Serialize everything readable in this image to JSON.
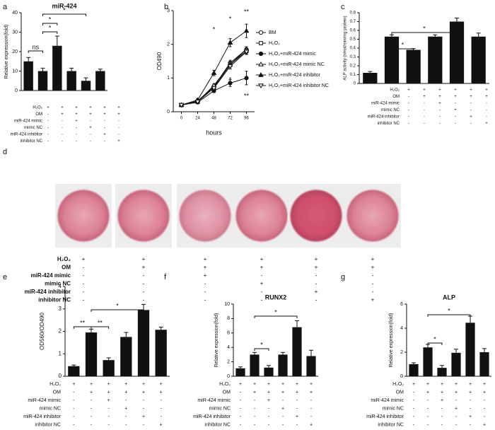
{
  "chart_data": [
    {
      "panel": "a",
      "type": "bar",
      "title": "miR-424",
      "ylabel": "Relative expression(fold)",
      "color": "#111111",
      "values": [
        15,
        10,
        23,
        10,
        5,
        10
      ],
      "errors": [
        2,
        1.5,
        5,
        1.5,
        1.5,
        1
      ],
      "ylim": [
        0,
        40
      ],
      "yticks": [
        0,
        10,
        20,
        30,
        40
      ],
      "annotations": [
        "ns",
        "*",
        "*",
        "*"
      ],
      "treatments": [
        {
          "label": "H₂O₂",
          "signs": [
            "+",
            "+",
            "+",
            "+",
            "+",
            "+"
          ]
        },
        {
          "label": "OM",
          "signs": [
            "-",
            "+",
            "+",
            "+",
            "+",
            "+"
          ]
        },
        {
          "label": "miR-424 mimic",
          "signs": [
            "-",
            "-",
            "+",
            "-",
            "-",
            "-"
          ]
        },
        {
          "label": "mimic NC",
          "signs": [
            "-",
            "-",
            "-",
            "+",
            "-",
            "-"
          ]
        },
        {
          "label": "miR-424 inhibitor",
          "signs": [
            "-",
            "-",
            "-",
            "-",
            "+",
            "-"
          ]
        },
        {
          "label": "inhibitor NC",
          "signs": [
            "-",
            "-",
            "-",
            "-",
            "-",
            "+"
          ]
        }
      ]
    },
    {
      "panel": "b",
      "type": "line",
      "xlabel": "hours",
      "ylabel": "OD490",
      "x": [
        0,
        24,
        48,
        72,
        96
      ],
      "xlim": [
        -12,
        108
      ],
      "xticks": [
        0,
        24,
        48,
        72,
        96
      ],
      "ylim": [
        0,
        3
      ],
      "yticks": [
        0,
        1,
        2,
        3
      ],
      "series": [
        {
          "name": "BM",
          "color": "#111111",
          "values": [
            0.2,
            0.32,
            0.75,
            1.45,
            1.85
          ],
          "errors": [
            0.02,
            0.03,
            0.05,
            0.08,
            0.08
          ]
        },
        {
          "name": "H₂O₂",
          "color": "#111111",
          "values": [
            0.2,
            0.3,
            0.72,
            1.4,
            1.8
          ],
          "errors": [
            0.02,
            0.03,
            0.05,
            0.08,
            0.08
          ]
        },
        {
          "name": "H₂O₂+miR-424 mimic",
          "color": "#111111",
          "values": [
            0.2,
            0.28,
            0.62,
            0.85,
            1.0
          ],
          "errors": [
            0.02,
            0.03,
            0.05,
            0.1,
            0.2
          ]
        },
        {
          "name": "H₂O₂+miR-424 mimic NC",
          "color": "#111111",
          "values": [
            0.2,
            0.3,
            0.78,
            1.4,
            1.85
          ],
          "errors": [
            0.02,
            0.03,
            0.05,
            0.08,
            0.08
          ]
        },
        {
          "name": "H₂O₂+miR-424 inhibitor",
          "color": "#111111",
          "values": [
            0.2,
            0.35,
            1.15,
            2.05,
            2.4
          ],
          "errors": [
            0.02,
            0.04,
            0.08,
            0.12,
            0.2
          ]
        },
        {
          "name": "H₂O₂+miR-424 inhibitor NC",
          "color": "#111111",
          "values": [
            0.2,
            0.3,
            0.7,
            1.35,
            1.78
          ],
          "errors": [
            0.02,
            0.03,
            0.05,
            0.08,
            0.08
          ]
        }
      ],
      "annotations": [
        "*",
        "*",
        "*",
        "**",
        "**"
      ]
    },
    {
      "panel": "c",
      "type": "bar",
      "ylabel": "ALP activity (nmol/min/mg protein)",
      "color": "#111111",
      "values": [
        0.12,
        0.53,
        0.38,
        0.53,
        0.7,
        0.53
      ],
      "errors": [
        0.015,
        0.02,
        0.015,
        0.02,
        0.04,
        0.04
      ],
      "ylim": [
        0,
        0.8
      ],
      "yticks": [
        0,
        0.1,
        0.2,
        0.3,
        0.4,
        0.5,
        0.6,
        0.7,
        0.8
      ],
      "annotations": [
        "*",
        "*"
      ],
      "treatments": [
        {
          "label": "H₂O₂",
          "signs": [
            "+",
            "+",
            "+",
            "+",
            "+",
            "+"
          ]
        },
        {
          "label": "OM",
          "signs": [
            "-",
            "+",
            "+",
            "+",
            "+",
            "+"
          ]
        },
        {
          "label": "miR-424 mimic",
          "signs": [
            "-",
            "-",
            "+",
            "-",
            "-",
            "-"
          ]
        },
        {
          "label": "mimic NC",
          "signs": [
            "-",
            "-",
            "-",
            "+",
            "-",
            "-"
          ]
        },
        {
          "label": "miR-424 inhibitor",
          "signs": [
            "-",
            "-",
            "-",
            "-",
            "+",
            "-"
          ]
        },
        {
          "label": "inhibitor NC",
          "signs": [
            "-",
            "-",
            "-",
            "-",
            "-",
            "+"
          ]
        }
      ]
    },
    {
      "panel": "e",
      "type": "bar",
      "ylabel": "OD560/OD490",
      "color": "#111111",
      "values": [
        0.45,
        1.95,
        0.72,
        1.75,
        2.95,
        2.07
      ],
      "errors": [
        0.05,
        0.15,
        0.1,
        0.2,
        0.25,
        0.12
      ],
      "ylim": [
        0,
        4
      ],
      "yticks": [
        0,
        1,
        2,
        3,
        4
      ],
      "annotations": [
        "**",
        "**",
        "*"
      ],
      "treatments": [
        {
          "label": "H₂O₂",
          "signs": [
            "+",
            "+",
            "+",
            "+",
            "+",
            "+"
          ]
        },
        {
          "label": "OM",
          "signs": [
            "-",
            "+",
            "+",
            "+",
            "+",
            "+"
          ]
        },
        {
          "label": "miR-424 mimic",
          "signs": [
            "-",
            "-",
            "+",
            "-",
            "-",
            "-"
          ]
        },
        {
          "label": "mimic NC",
          "signs": [
            "-",
            "-",
            "-",
            "+",
            "-",
            "-"
          ]
        },
        {
          "label": "miR-424 inhibitor",
          "signs": [
            "-",
            "-",
            "-",
            "-",
            "+",
            "-"
          ]
        },
        {
          "label": "inhibitor NC",
          "signs": [
            "-",
            "-",
            "-",
            "-",
            "-",
            "+"
          ]
        }
      ]
    },
    {
      "panel": "f",
      "type": "bar",
      "title": "RUNX2",
      "ylabel": "Relative expression(fold)",
      "color": "#111111",
      "values": [
        1.1,
        3.0,
        1.2,
        3.0,
        6.8,
        2.8
      ],
      "errors": [
        0.2,
        0.3,
        0.3,
        0.3,
        0.9,
        0.8
      ],
      "ylim": [
        0,
        10
      ],
      "yticks": [
        0,
        2,
        4,
        6,
        8,
        10
      ],
      "annotations": [
        "*",
        "*"
      ],
      "treatments": [
        {
          "label": "H₂O₂",
          "signs": [
            "+",
            "+",
            "+",
            "+",
            "+",
            "+"
          ]
        },
        {
          "label": "OM",
          "signs": [
            "-",
            "+",
            "+",
            "+",
            "+",
            "+"
          ]
        },
        {
          "label": "miR-424 mimic",
          "signs": [
            "-",
            "-",
            "+",
            "-",
            "-",
            "-"
          ]
        },
        {
          "label": "mimic NC",
          "signs": [
            "-",
            "-",
            "-",
            "+",
            "-",
            "-"
          ]
        },
        {
          "label": "miR-424 inhibitor",
          "signs": [
            "-",
            "-",
            "-",
            "-",
            "+",
            "-"
          ]
        },
        {
          "label": "inhibitor NC",
          "signs": [
            "-",
            "-",
            "-",
            "-",
            "-",
            "+"
          ]
        }
      ]
    },
    {
      "panel": "g",
      "type": "bar",
      "title": "ALP",
      "ylabel": "Relative expression(fold)",
      "color": "#111111",
      "values": [
        1.0,
        2.4,
        0.7,
        1.95,
        4.45,
        2.0
      ],
      "errors": [
        0.12,
        0.25,
        0.2,
        0.3,
        0.55,
        0.3
      ],
      "ylim": [
        0,
        6
      ],
      "yticks": [
        0,
        2,
        4,
        6
      ],
      "annotations": [
        "*",
        "*"
      ],
      "treatments": [
        {
          "label": "H₂O₂",
          "signs": [
            "+",
            "+",
            "+",
            "+",
            "+",
            "+"
          ]
        },
        {
          "label": "OM",
          "signs": [
            "-",
            "+",
            "+",
            "+",
            "+",
            "+"
          ]
        },
        {
          "label": "miR-424 mimic",
          "signs": [
            "-",
            "-",
            "+",
            "-",
            "-",
            "-"
          ]
        },
        {
          "label": "mimic NC",
          "signs": [
            "-",
            "-",
            "-",
            "+",
            "-",
            "-"
          ]
        },
        {
          "label": "miR-424 inhibitor",
          "signs": [
            "-",
            "-",
            "-",
            "-",
            "+",
            "-"
          ]
        },
        {
          "label": "inhibitor NC",
          "signs": [
            "-",
            "-",
            "-",
            "-",
            "-",
            "+"
          ]
        }
      ]
    }
  ],
  "panel_d": {
    "panel": "d",
    "treatments": [
      {
        "label": "H₂O₂",
        "signs": [
          "+",
          "+",
          "+",
          "+",
          "+",
          "+"
        ]
      },
      {
        "label": "OM",
        "signs": [
          "-",
          "+",
          "+",
          "+",
          "+",
          "+"
        ]
      },
      {
        "label": "miR-424 mimic",
        "signs": [
          "-",
          "-",
          "+",
          "-",
          "-",
          "-"
        ]
      },
      {
        "label": "mimic NC",
        "signs": [
          "-",
          "-",
          "-",
          "+",
          "-",
          "-"
        ]
      },
      {
        "label": "miR-424 inhibitor",
        "signs": [
          "-",
          "-",
          "-",
          "-",
          "+",
          "-"
        ]
      },
      {
        "label": "inhibitor NC",
        "signs": [
          "-",
          "-",
          "-",
          "-",
          "-",
          "+"
        ]
      }
    ]
  }
}
